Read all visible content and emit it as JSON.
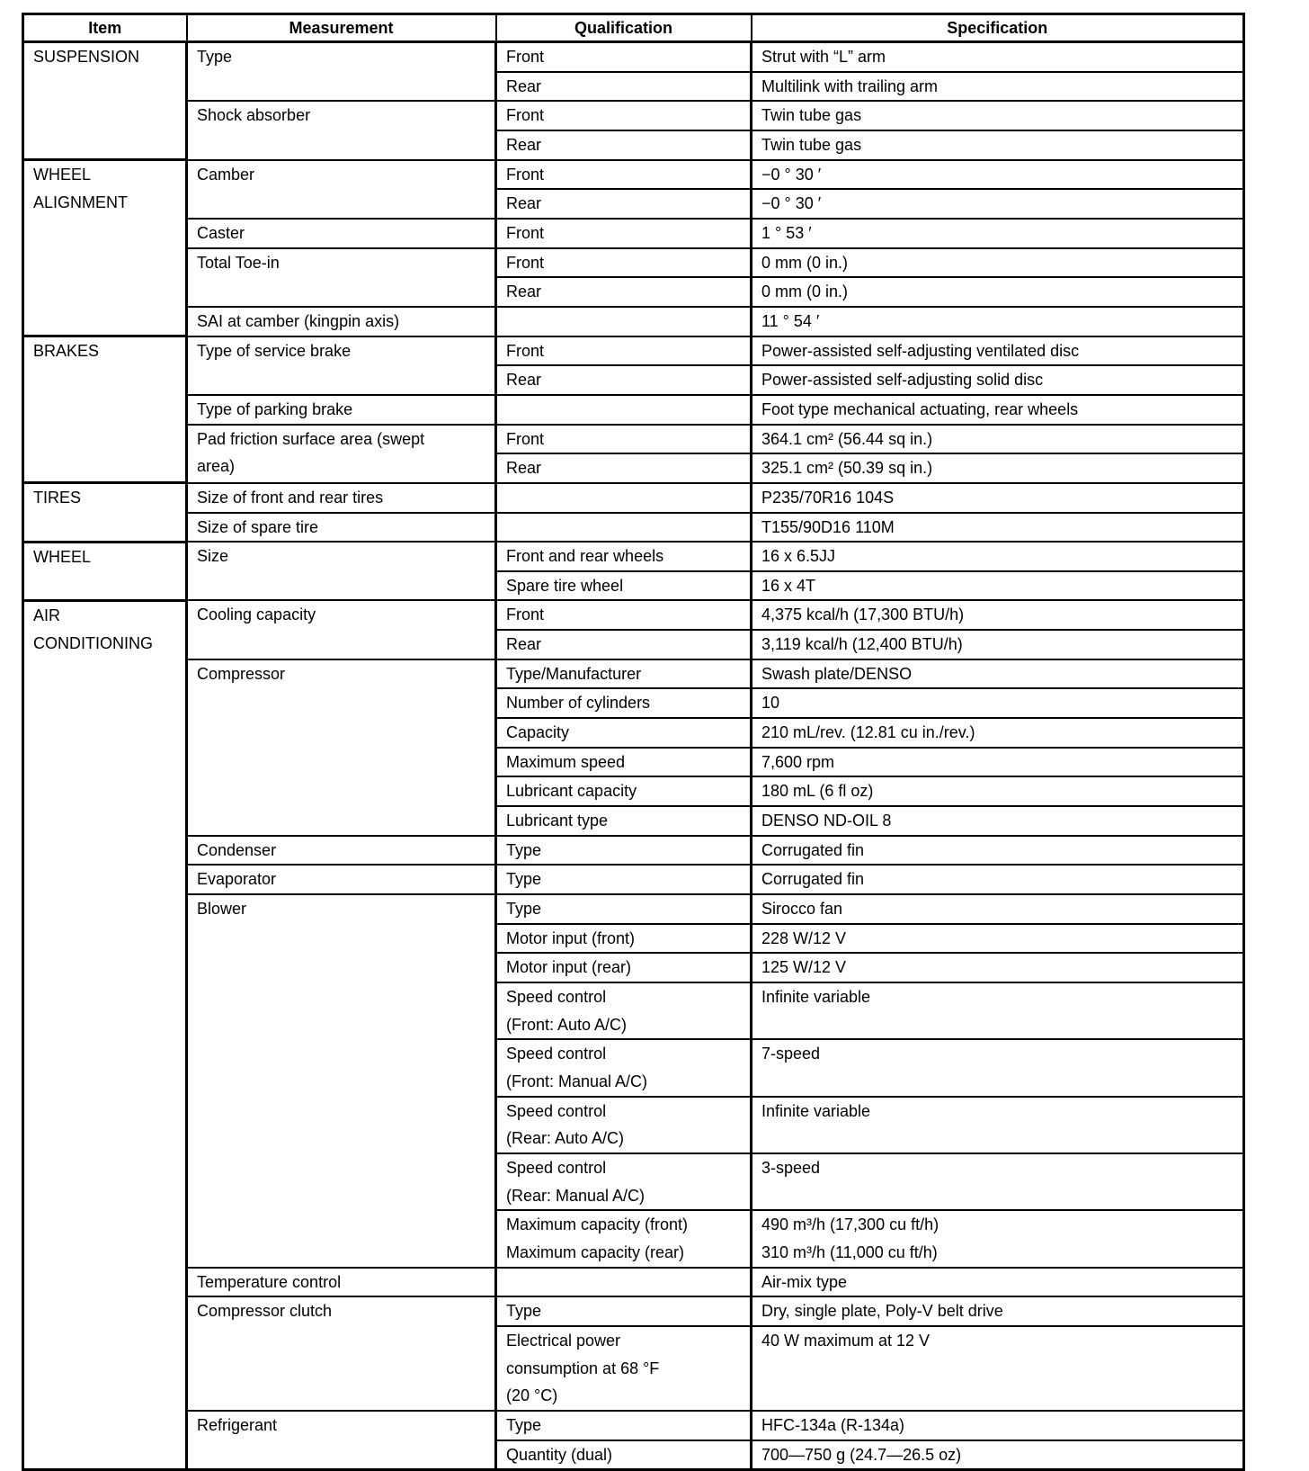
{
  "headers": [
    "Item",
    "Measurement",
    "Qualification",
    "Specification"
  ],
  "items": [
    {
      "name": "SUSPENSION",
      "measurements": [
        {
          "name": "Type",
          "rows": [
            {
              "qualification": "Front",
              "specification": "Strut with “L” arm"
            },
            {
              "qualification": "Rear",
              "specification": "Multilink with trailing arm"
            }
          ]
        },
        {
          "name": "Shock absorber",
          "rows": [
            {
              "qualification": "Front",
              "specification": "Twin tube gas"
            },
            {
              "qualification": "Rear",
              "specification": "Twin tube gas"
            }
          ]
        }
      ]
    },
    {
      "name": "WHEEL\nALIGNMENT",
      "measurements": [
        {
          "name": "Camber",
          "rows": [
            {
              "qualification": "Front",
              "specification": "−0 ° 30 ′"
            },
            {
              "qualification": "Rear",
              "specification": "−0 ° 30 ′"
            }
          ]
        },
        {
          "name": "Caster",
          "rows": [
            {
              "qualification": "Front",
              "specification": "1 ° 53 ′"
            }
          ]
        },
        {
          "name": "Total Toe-in",
          "rows": [
            {
              "qualification": "Front",
              "specification": "0 mm (0 in.)"
            },
            {
              "qualification": "Rear",
              "specification": "0 mm (0 in.)"
            }
          ]
        },
        {
          "name": "SAI at camber (kingpin axis)",
          "rows": [
            {
              "qualification": "",
              "specification": "11 ° 54 ′"
            }
          ]
        }
      ]
    },
    {
      "name": "BRAKES",
      "measurements": [
        {
          "name": "Type of service brake",
          "rows": [
            {
              "qualification": "Front",
              "specification": "Power-assisted self-adjusting ventilated disc"
            },
            {
              "qualification": "Rear",
              "specification": "Power-assisted self-adjusting solid disc"
            }
          ]
        },
        {
          "name": "Type of parking brake",
          "rows": [
            {
              "qualification": "",
              "specification": "Foot type mechanical actuating, rear wheels"
            }
          ]
        },
        {
          "name": "Pad friction surface area (swept\narea)",
          "rows": [
            {
              "qualification": "Front",
              "specification": "364.1 cm² (56.44 sq in.)"
            },
            {
              "qualification": "Rear",
              "specification": "325.1 cm² (50.39 sq in.)"
            }
          ]
        }
      ]
    },
    {
      "name": "TIRES",
      "measurements": [
        {
          "name": "Size of front and rear tires",
          "rows": [
            {
              "qualification": "",
              "specification": "P235/70R16 104S"
            }
          ]
        },
        {
          "name": "Size of spare tire",
          "rows": [
            {
              "qualification": "",
              "specification": "T155/90D16 110M"
            }
          ]
        }
      ]
    },
    {
      "name": "WHEEL",
      "measurements": [
        {
          "name": "Size",
          "rows": [
            {
              "qualification": "Front and rear wheels",
              "specification": "16 x 6.5JJ"
            },
            {
              "qualification": "Spare tire wheel",
              "specification": "16 x 4T"
            }
          ]
        }
      ]
    },
    {
      "name": "AIR\nCONDITIONING",
      "measurements": [
        {
          "name": "Cooling capacity",
          "rows": [
            {
              "qualification": "Front",
              "specification": "4,375 kcal/h (17,300 BTU/h)"
            },
            {
              "qualification": "Rear",
              "specification": "3,119 kcal/h (12,400 BTU/h)"
            }
          ]
        },
        {
          "name": "Compressor",
          "rows": [
            {
              "qualification": "Type/Manufacturer",
              "specification": "Swash plate/DENSO"
            },
            {
              "qualification": "Number of cylinders",
              "specification": "10"
            },
            {
              "qualification": "Capacity",
              "specification": "210 mL/rev. (12.81 cu in./rev.)"
            },
            {
              "qualification": "Maximum speed",
              "specification": "7,600 rpm"
            },
            {
              "qualification": "Lubricant capacity",
              "specification": "180 mL (6 fl oz)"
            },
            {
              "qualification": "Lubricant type",
              "specification": "DENSO ND-OIL 8"
            }
          ]
        },
        {
          "name": "Condenser",
          "rows": [
            {
              "qualification": "Type",
              "specification": "Corrugated fin"
            }
          ]
        },
        {
          "name": "Evaporator",
          "rows": [
            {
              "qualification": "Type",
              "specification": "Corrugated fin"
            }
          ]
        },
        {
          "name": "Blower",
          "rows": [
            {
              "qualification": "Type",
              "specification": "Sirocco fan"
            },
            {
              "qualification": "Motor input (front)",
              "specification": "228 W/12 V"
            },
            {
              "qualification": "Motor input (rear)",
              "specification": "125 W/12 V"
            },
            {
              "qualification": "Speed control\n(Front: Auto A/C)",
              "specification": "Infinite variable"
            },
            {
              "qualification": "Speed control\n(Front: Manual A/C)",
              "specification": "7-speed"
            },
            {
              "qualification": "Speed control\n(Rear: Auto A/C)",
              "specification": "Infinite variable"
            },
            {
              "qualification": "Speed control\n(Rear: Manual A/C)",
              "specification": "3-speed"
            },
            {
              "qualification": "Maximum capacity (front)\nMaximum capacity (rear)",
              "specification": "490 m³/h (17,300 cu ft/h)\n310 m³/h (11,000 cu ft/h)"
            }
          ]
        },
        {
          "name": "Temperature control",
          "rows": [
            {
              "qualification": "",
              "specification": "Air-mix type"
            }
          ]
        },
        {
          "name": "Compressor clutch",
          "rows": [
            {
              "qualification": "Type",
              "specification": "Dry, single plate, Poly-V belt drive"
            },
            {
              "qualification": "Electrical power\nconsumption at 68 °F\n(20 °C)",
              "specification": "40 W maximum at 12 V"
            }
          ]
        },
        {
          "name": "Refrigerant",
          "rows": [
            {
              "qualification": "Type",
              "specification": "HFC-134a (R-134a)"
            },
            {
              "qualification": "Quantity (dual)",
              "specification": "700—750 g (24.7—26.5 oz)"
            }
          ]
        }
      ]
    }
  ]
}
